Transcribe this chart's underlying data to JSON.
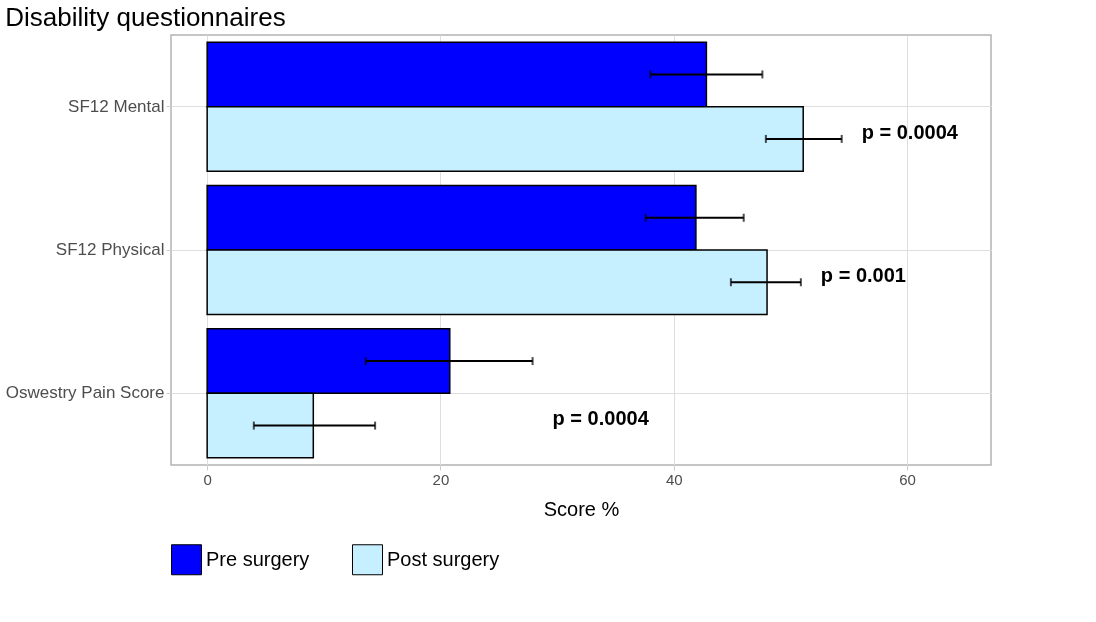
{
  "chart_data": {
    "type": "bar",
    "orientation": "horizontal",
    "title": "Disability questionnaires",
    "xlabel": "Score %",
    "categories": [
      "SF12 Mental",
      "SF12 Physical",
      "Oswestry Pain Score"
    ],
    "series": [
      {
        "name": "Pre surgery",
        "color": "#0000ff",
        "values": [
          42.8,
          41.9,
          20.8
        ],
        "errors": [
          [
            38.0,
            47.6
          ],
          [
            37.6,
            46.0
          ],
          [
            13.6,
            27.9
          ]
        ]
      },
      {
        "name": "Post surgery",
        "color": "#c6efff",
        "values": [
          51.1,
          48.0,
          9.1
        ],
        "errors": [
          [
            47.9,
            54.4
          ],
          [
            44.9,
            50.9
          ],
          [
            4.0,
            14.4
          ]
        ]
      }
    ],
    "xlim": [
      -3.1,
      67.2
    ],
    "xticks": [
      0,
      20,
      40,
      60
    ],
    "grid": true,
    "legend": "bottom",
    "annotations": [
      "p = 0.0004",
      "p = 0.001",
      "p = 0.0004"
    ]
  }
}
